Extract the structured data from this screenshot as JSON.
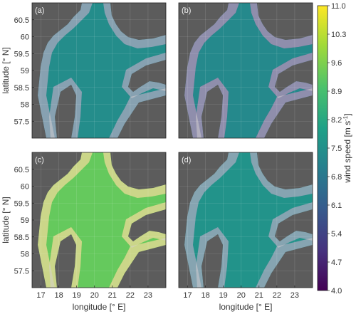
{
  "chart_data": {
    "type": "heatmap",
    "panels": [
      {
        "label": "(a)",
        "mean_wind_speed": 7.4,
        "coastal_wind_speed": 6.2
      },
      {
        "label": "(b)",
        "mean_wind_speed": 7.3,
        "coastal_wind_speed": 5.0
      },
      {
        "label": "(c)",
        "mean_wind_speed": 9.3,
        "coastal_wind_speed": 10.6
      },
      {
        "label": "(d)",
        "mean_wind_speed": 7.6,
        "coastal_wind_speed": 6.4
      }
    ],
    "xlabel": "longitude [° E]",
    "ylabel": "latitude [° N]",
    "x_ticks": [
      "17",
      "18",
      "19",
      "20",
      "21",
      "22",
      "23"
    ],
    "y_ticks": [
      "60.5",
      "60",
      "59.5",
      "59",
      "58.5",
      "58",
      "57.5"
    ],
    "xlim": [
      16.5,
      24.0
    ],
    "ylim": [
      57.0,
      61.0
    ],
    "colorbar": {
      "label": "wind speed [m s",
      "label_sup": "-1",
      "label_end": "]",
      "ticks": [
        "11.0",
        "10.3",
        "9.6",
        "8.9",
        "8.2",
        "7.5",
        "6.8",
        "6.1",
        "5.4",
        "4.7",
        "4.0"
      ],
      "range": [
        4.0,
        11.0
      ],
      "colormap": "viridis"
    },
    "grid": true,
    "colors": {
      "land": "#5c5c5c",
      "masked_coast": "#cfcfcf"
    }
  }
}
